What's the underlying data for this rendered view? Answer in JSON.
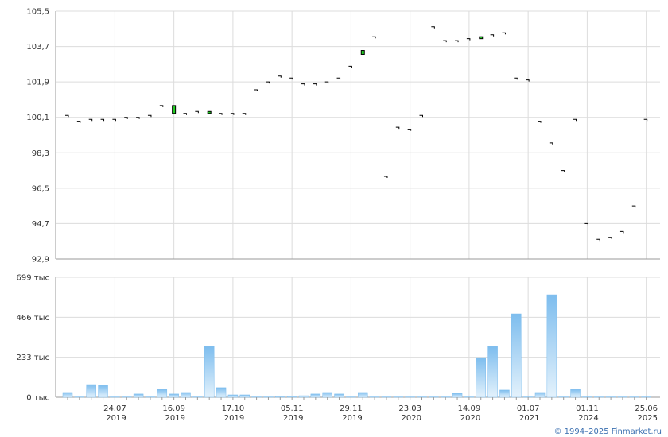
{
  "chart_data": [
    {
      "type": "candlestick",
      "open": [
        null,
        null,
        null,
        null,
        null,
        null,
        null,
        null,
        null,
        100.3,
        null,
        null,
        100.3,
        null,
        null,
        null,
        null,
        null,
        null,
        null,
        null,
        null,
        null,
        null,
        null,
        103.3,
        null,
        null,
        null,
        null,
        null,
        null,
        null,
        null,
        null,
        104.1,
        null,
        null,
        null,
        null,
        null,
        null,
        null,
        null,
        null,
        null,
        null,
        null,
        null,
        null
      ],
      "values": [
        100.2,
        99.9,
        100.0,
        100.0,
        100.0,
        100.1,
        100.1,
        100.2,
        100.7,
        100.7,
        100.3,
        100.4,
        100.4,
        100.3,
        100.3,
        100.3,
        101.5,
        101.9,
        102.2,
        102.1,
        101.8,
        101.8,
        101.9,
        102.1,
        102.7,
        103.5,
        104.2,
        97.1,
        99.6,
        99.5,
        100.2,
        104.7,
        104.0,
        104.0,
        104.1,
        104.2,
        104.3,
        104.4,
        102.1,
        102.0,
        99.9,
        98.8,
        97.4,
        100.0,
        94.7,
        93.9,
        94.0,
        94.3,
        95.6,
        100.0
      ],
      "color": "#22cc22",
      "ylim": [
        92.9,
        105.5
      ],
      "yticks": [
        {
          "value": 92.9,
          "label": "92,9"
        },
        {
          "value": 94.7,
          "label": "94,7"
        },
        {
          "value": 96.5,
          "label": "96,5"
        },
        {
          "value": 98.3,
          "label": "98,3"
        },
        {
          "value": 100.1,
          "label": "100,1"
        },
        {
          "value": 101.9,
          "label": "101,9"
        },
        {
          "value": 103.7,
          "label": "103,7"
        },
        {
          "value": 105.5,
          "label": "105,5"
        }
      ],
      "grid": true
    },
    {
      "type": "bar",
      "categories": [
        null,
        null,
        null,
        null,
        "24.07 2019",
        null,
        null,
        null,
        null,
        "16.09 2019",
        null,
        null,
        null,
        null,
        "17.10 2019",
        null,
        null,
        null,
        null,
        "05.11 2019",
        null,
        null,
        null,
        null,
        "29.11 2019",
        null,
        null,
        null,
        null,
        "23.03 2020",
        null,
        null,
        null,
        null,
        "14.09 2020",
        null,
        null,
        null,
        null,
        "01.07 2021",
        null,
        null,
        null,
        null,
        "01.11 2024",
        null,
        null,
        null,
        null,
        "25.06 2025"
      ],
      "values": [
        28,
        2,
        74,
        69,
        2,
        2,
        19,
        2,
        46,
        19,
        28,
        2,
        296,
        56,
        14,
        14,
        2,
        2,
        5,
        5,
        9,
        19,
        28,
        19,
        2,
        28,
        2,
        2,
        2,
        2,
        2,
        2,
        2,
        23,
        2,
        231,
        296,
        42,
        486,
        2,
        28,
        597,
        2,
        46,
        2,
        2,
        2,
        2,
        2,
        2
      ],
      "color": "#7dbdee",
      "ylim": [
        0,
        699
      ],
      "yticks": [
        {
          "value": 0,
          "label": "0 тыс"
        },
        {
          "value": 233,
          "label": "233 тыс"
        },
        {
          "value": 466,
          "label": "466 тыс"
        },
        {
          "value": 699,
          "label": "699 тыс"
        }
      ],
      "grid": true
    }
  ],
  "footer": "© 1994–2025 Finmarket.ru"
}
